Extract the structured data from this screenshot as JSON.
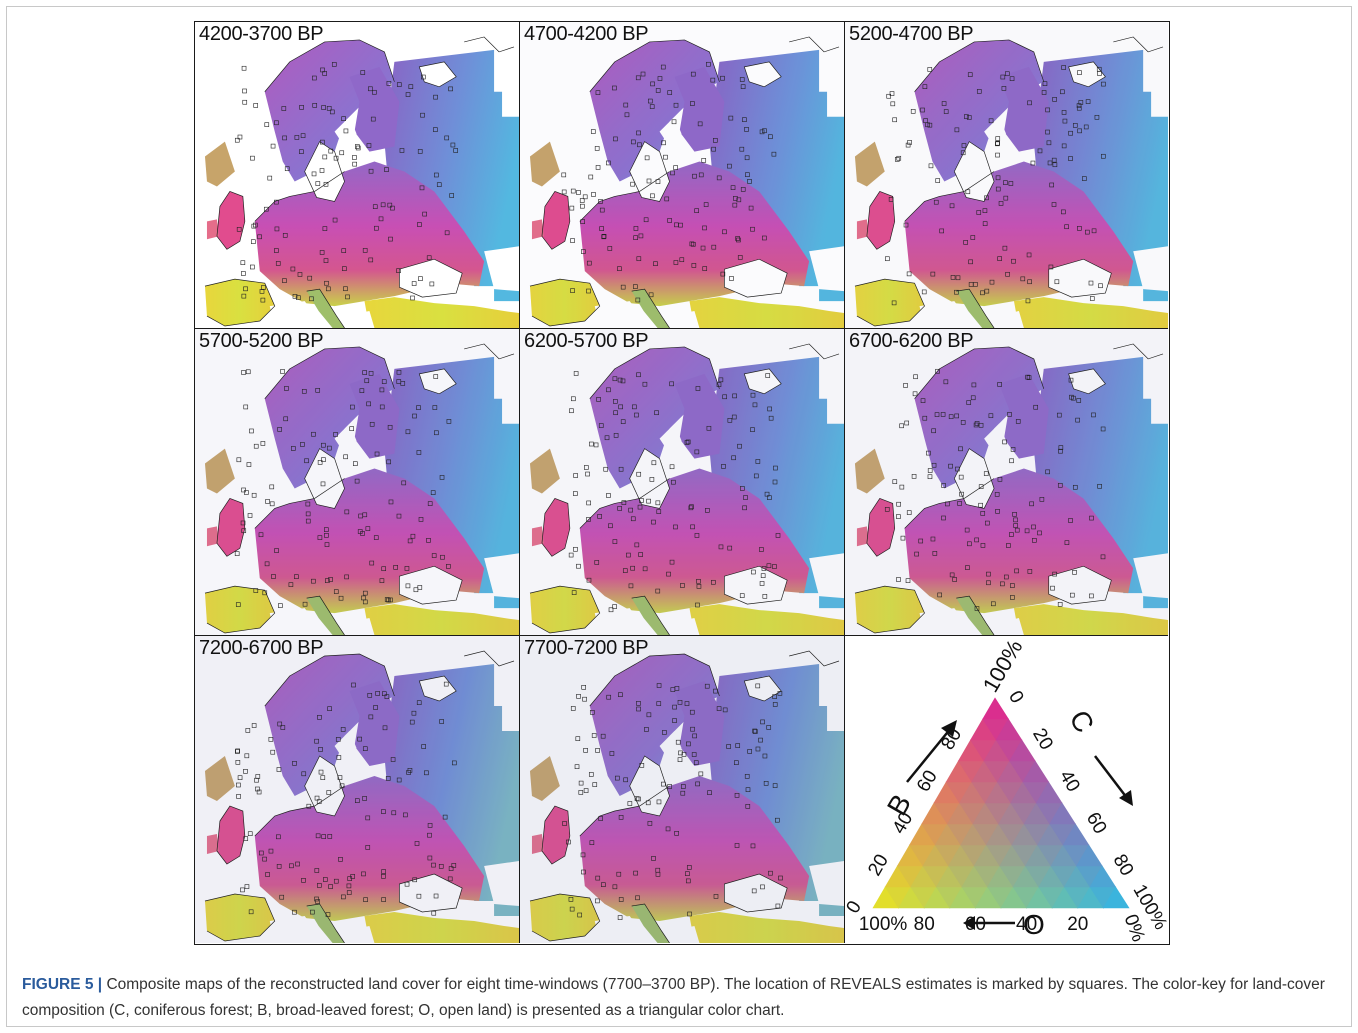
{
  "panels": [
    {
      "label": "4200-3700 BP"
    },
    {
      "label": "4700-4200 BP"
    },
    {
      "label": "5200-4700 BP"
    },
    {
      "label": "5700-5200 BP"
    },
    {
      "label": "6200-5700 BP"
    },
    {
      "label": "6700-6200 BP"
    },
    {
      "label": "7200-6700 BP"
    },
    {
      "label": "7700-7200 BP"
    }
  ],
  "color_key": {
    "apex_label": "100%",
    "left_axis": {
      "letter": "B",
      "ticks": [
        "0",
        "20",
        "40",
        "60",
        "80"
      ]
    },
    "right_axis": {
      "letter": "C",
      "ticks": [
        "0",
        "20",
        "40",
        "60",
        "80",
        "100%"
      ]
    },
    "bottom_axis": {
      "letter": "O",
      "ticks": [
        "100%",
        "80",
        "60",
        "40",
        "20",
        "0%"
      ]
    },
    "colors": {
      "C": "#2fb7e6",
      "B": "#e0238f",
      "O": "#e8e622"
    }
  },
  "caption": {
    "figure_label": "FIGURE 5 |",
    "text": " Composite maps of the reconstructed land cover for eight time-windows (7700–3700 BP). The location of REVEALS estimates is marked by squares. The color-key for land-cover composition (C, coniferous forest; B, broad-leaved forest; O, open land) is presented as a triangular color chart."
  }
}
